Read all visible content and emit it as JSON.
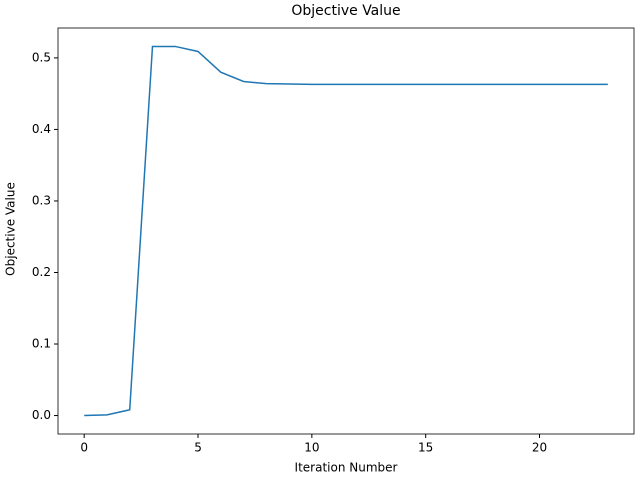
{
  "chart_data": {
    "type": "line",
    "title": "Objective Value",
    "x_label": "Iteration Number",
    "y_label": "Objective Value",
    "x": [
      0,
      1,
      2,
      3,
      4,
      5,
      6,
      7,
      8,
      9,
      10,
      11,
      12,
      13,
      14,
      15,
      16,
      17,
      18,
      19,
      20,
      21,
      22,
      23
    ],
    "series": [
      {
        "color": "#1f77b4",
        "values": [
          0.0,
          0.001,
          0.008,
          0.516,
          0.516,
          0.509,
          0.48,
          0.467,
          0.464,
          0.4635,
          0.463,
          0.463,
          0.463,
          0.463,
          0.463,
          0.463,
          0.463,
          0.463,
          0.463,
          0.463,
          0.463,
          0.463,
          0.463,
          0.463
        ]
      }
    ],
    "xlim": [
      -1.15,
      24.15
    ],
    "ylim": [
      -0.0258,
      0.5418
    ],
    "xticks": [
      0,
      5,
      10,
      15,
      20
    ],
    "yticks": [
      {
        "value": 0,
        "label": "0.0"
      },
      0.1,
      0.2,
      0.3,
      0.4,
      0.5
    ]
  }
}
